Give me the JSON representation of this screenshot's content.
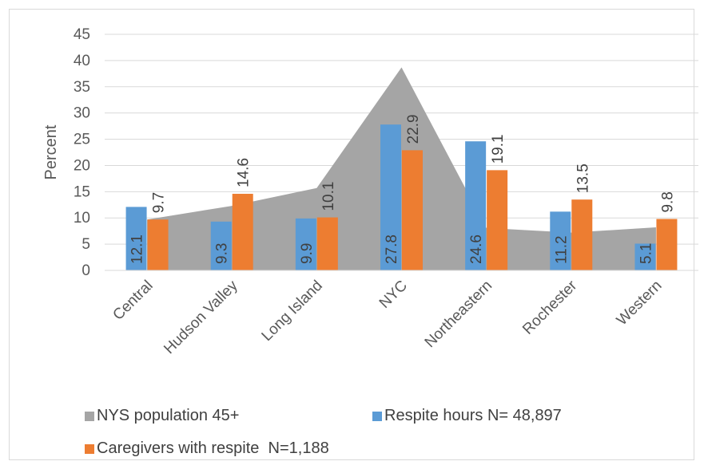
{
  "chart_data": {
    "type": "bar",
    "title": "",
    "xlabel": "",
    "ylabel": "Percent",
    "ylim": [
      0,
      45
    ],
    "yticks": [
      "0",
      "5",
      "10",
      "15",
      "20",
      "25",
      "30",
      "35",
      "40",
      "45"
    ],
    "grid": true,
    "legend_position": "bottom",
    "categories": [
      "Central",
      "Hudson Valley",
      "Long Island",
      "NYC",
      "Northeastern",
      "Rochester",
      "Western"
    ],
    "series": [
      {
        "name": "NYS population 45+",
        "kind": "area",
        "color": "#a5a5a5",
        "values": [
          9.7,
          12.3,
          15.7,
          38.7,
          8.1,
          7.2,
          8.2
        ]
      },
      {
        "name": "Respite hours N= 48,897",
        "kind": "bar",
        "color": "#5b9bd5",
        "values": [
          12.1,
          9.3,
          9.9,
          27.8,
          24.6,
          11.2,
          5.1
        ]
      },
      {
        "name": "Caregivers with respite  N=1,188",
        "kind": "bar",
        "color": "#ed7d31",
        "values": [
          9.7,
          14.6,
          10.1,
          22.9,
          19.1,
          13.5,
          9.8
        ]
      }
    ],
    "data_labels": {
      "bars1": [
        "12.1",
        "9.3",
        "9.9",
        "27.8",
        "24.6",
        "11.2",
        "5.1"
      ],
      "bars2": [
        "9.7",
        "14.6",
        "10.1",
        "22.9",
        "19.1",
        "13.5",
        "9.8"
      ]
    }
  }
}
